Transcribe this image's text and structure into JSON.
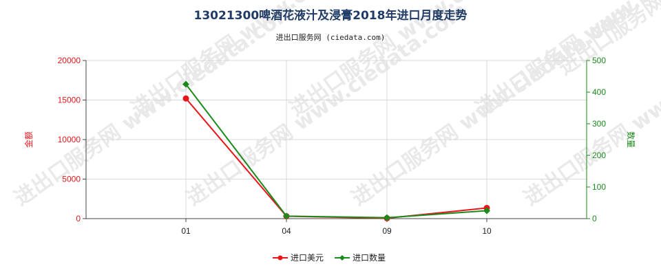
{
  "chart_data": {
    "type": "line",
    "title": "13021300啤酒花液汁及浸膏2018年进口月度走势",
    "subtitle": "进出口服务网 (ciedata.com)",
    "categories": [
      "01",
      "04",
      "09",
      "10"
    ],
    "y_left": {
      "label": "金额",
      "lim": [
        0,
        20000
      ],
      "ticks": [
        "0",
        "5000",
        "10000",
        "15000",
        "20000"
      ],
      "color": "#e8151b"
    },
    "y_right": {
      "label": "数量",
      "lim": [
        0,
        500
      ],
      "ticks": [
        "0",
        "100",
        "200",
        "300",
        "400",
        "500"
      ],
      "color": "#1a8a1a"
    },
    "series": [
      {
        "name": "进口美元",
        "axis": "left",
        "color": "#e8151b",
        "values": [
          15200,
          300,
          50,
          1350
        ]
      },
      {
        "name": "进口数量",
        "axis": "right",
        "color": "#1a8a1a",
        "values": [
          425,
          8,
          3,
          25
        ]
      }
    ],
    "grid": true,
    "legend": "bottom-center",
    "watermark": "进出口服务网 www.ciedata.com"
  }
}
